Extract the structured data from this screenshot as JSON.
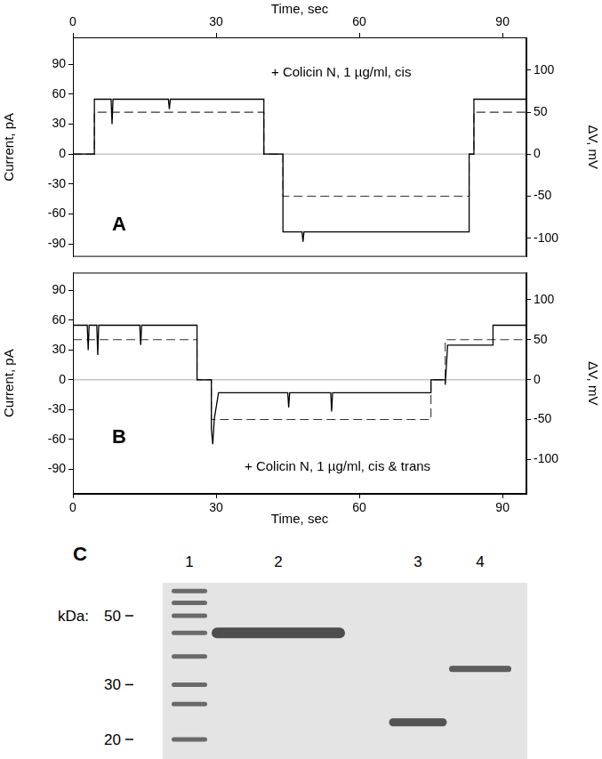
{
  "chart_data": [
    {
      "type": "line",
      "panel": "A",
      "xlabel": "Time, sec",
      "ylabel": "Current, pA",
      "y2label": "ΔV, mV",
      "annotations": [
        "+ Colicin N, 1 µg/ml, cis"
      ],
      "xlim": [
        0,
        95
      ],
      "xticks": [
        0,
        30,
        60,
        90
      ],
      "ylim": [
        -103,
        117
      ],
      "yticks": [
        -90,
        -60,
        -30,
        0,
        30,
        60,
        90
      ],
      "y2lim": [
        -122,
        139
      ],
      "y2ticks": [
        -100,
        -50,
        0,
        50,
        100
      ],
      "hline": 0,
      "grid": false,
      "series": [
        {
          "color": "#000000",
          "line_style": "solid",
          "x": [
            0,
            4.5,
            4.5,
            8,
            8.2,
            8.4,
            20,
            20.2,
            20.4,
            40,
            40,
            44,
            44,
            48,
            48.2,
            48.4,
            83,
            83,
            84,
            84,
            95
          ],
          "values": [
            0,
            0,
            55,
            55,
            30,
            55,
            55,
            45,
            55,
            55,
            0,
            0,
            -78,
            -78,
            -88,
            -78,
            -78,
            0,
            0,
            55,
            55
          ]
        },
        {
          "color": "#333333",
          "line_style": "dashed",
          "axis": "y2",
          "x": [
            0,
            4.5,
            4.5,
            40,
            40,
            44,
            44,
            83,
            83,
            84,
            84,
            95
          ],
          "values": [
            0,
            0,
            50,
            50,
            0,
            0,
            -50,
            -50,
            0,
            0,
            50,
            50
          ]
        }
      ]
    },
    {
      "type": "line",
      "panel": "B",
      "xlabel": "Time, sec",
      "ylabel": "Current, pA",
      "y2label": "ΔV, mV",
      "annotations": [
        "+ Colicin N, 1 µg/ml, cis & trans"
      ],
      "xlim": [
        0,
        95
      ],
      "xticks": [
        0,
        30,
        60,
        90
      ],
      "ylim": [
        -115,
        108
      ],
      "yticks": [
        -90,
        -60,
        -30,
        0,
        30,
        60,
        90
      ],
      "y2lim": [
        -143,
        134
      ],
      "y2ticks": [
        -100,
        -50,
        0,
        50,
        100
      ],
      "hline": 0,
      "grid": false,
      "series": [
        {
          "color": "#000000",
          "line_style": "solid",
          "x": [
            0,
            3,
            3.2,
            3.4,
            5,
            5.2,
            5.4,
            14,
            14.2,
            14.4,
            26,
            26,
            29,
            29,
            29.3,
            29.6,
            30.5,
            45,
            45.2,
            45.4,
            54,
            54.2,
            54.4,
            75,
            75,
            78,
            78,
            78.5,
            88,
            88,
            95
          ],
          "values": [
            55,
            55,
            30,
            55,
            55,
            25,
            55,
            55,
            35,
            55,
            55,
            0,
            0,
            -50,
            -65,
            -40,
            -13,
            -13,
            -28,
            -13,
            -13,
            -32,
            -13,
            -13,
            0,
            0,
            -5,
            35,
            35,
            55,
            55
          ]
        },
        {
          "color": "#333333",
          "line_style": "dashed",
          "axis": "y2",
          "x": [
            0,
            26,
            26,
            29,
            29,
            75,
            75,
            78,
            78,
            95
          ],
          "values": [
            50,
            50,
            0,
            0,
            -50,
            -50,
            0,
            0,
            50,
            50
          ]
        }
      ]
    }
  ],
  "gel": {
    "panel": "C",
    "lanes": [
      "1",
      "2",
      "3",
      "4"
    ],
    "size_label": "kDa:",
    "log": true,
    "ylim": [
      17.3,
      63.8
    ],
    "yticks": [
      50,
      30,
      20
    ],
    "bands": [
      [
        60,
        55,
        50,
        44,
        37,
        30,
        26,
        20
      ],
      [
        44
      ],
      [
        22.7
      ],
      [
        33.7
      ]
    ]
  }
}
